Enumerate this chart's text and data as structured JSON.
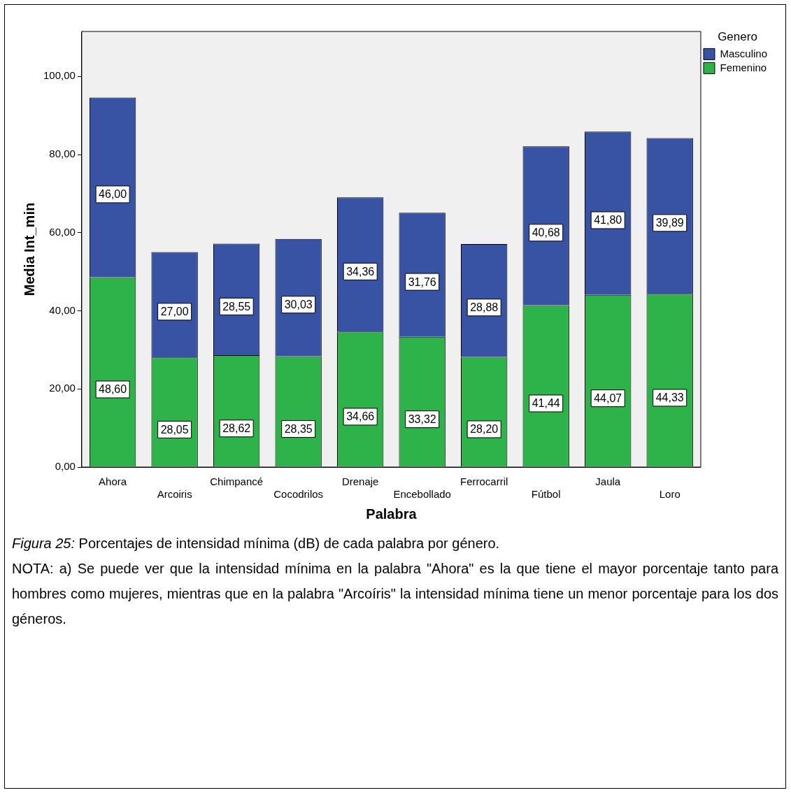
{
  "chart_data": {
    "type": "bar",
    "stacked": true,
    "xlabel": "Palabra",
    "ylabel": "Media Int_min",
    "legend_title": "Genero",
    "legend": "top right",
    "grid": false,
    "categories": [
      "Ahora",
      "Arcoiris",
      "Chimpancé",
      "Cocodrilos",
      "Drenaje",
      "Encebollado",
      "Ferrocarril",
      "Fútbol",
      "Jaula",
      "Loro"
    ],
    "series": [
      {
        "name": "Femenino",
        "color": "#2db34a",
        "values": [
          48.6,
          28.05,
          28.62,
          28.35,
          34.66,
          33.32,
          28.2,
          41.44,
          44.07,
          44.33
        ],
        "value_labels": [
          "48,60",
          "28,05",
          "28,62",
          "28,35",
          "34,66",
          "33,32",
          "28,20",
          "41,44",
          "44,07",
          "44,33"
        ]
      },
      {
        "name": "Masculino",
        "color": "#3953a4",
        "values": [
          46.0,
          27.0,
          28.55,
          30.03,
          34.36,
          31.76,
          28.88,
          40.68,
          41.8,
          39.89
        ],
        "value_labels": [
          "46,00",
          "27,00",
          "28,55",
          "30,03",
          "34,36",
          "31,76",
          "28,88",
          "40,68",
          "41,80",
          "39,89"
        ]
      }
    ],
    "ylim": [
      0,
      111.5
    ],
    "yticks": [
      {
        "value": 0,
        "label": "0,00"
      },
      {
        "value": 20,
        "label": "20,00"
      },
      {
        "value": 40,
        "label": "40,00"
      },
      {
        "value": 60,
        "label": "60,00"
      },
      {
        "value": 80,
        "label": "80,00"
      },
      {
        "value": 100,
        "label": "100,00"
      }
    ],
    "annotations": [
      "Figura 25: Porcentajes de intensidad mínima (dB) de cada palabra por género.",
      "NOTA: a) Se puede ver que la intensidad mínima en la palabra \"Ahora\" es la que tiene el mayor porcentaje tanto para hombres como mujeres, mientras que en la palabra \"Arcoíris\"  la intensidad mínima tiene un menor porcentaje para los dos géneros."
    ]
  }
}
